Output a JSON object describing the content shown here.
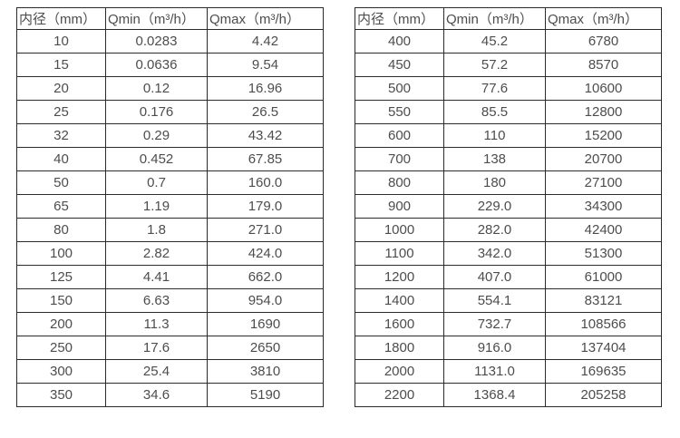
{
  "colors": {
    "background": "#ffffff",
    "table_border": "#2b2b2b",
    "table_text": "#4d4d4d"
  },
  "tables": [
    {
      "name": "small-diameters",
      "headers": [
        "内径（mm）",
        "Qmin（m³/h）",
        "Qmax（m³/h）"
      ],
      "rows": [
        [
          "10",
          "0.0283",
          "4.42"
        ],
        [
          "15",
          "0.0636",
          "9.54"
        ],
        [
          "20",
          "0.12",
          "16.96"
        ],
        [
          "25",
          "0.176",
          "26.5"
        ],
        [
          "32",
          "0.29",
          "43.42"
        ],
        [
          "40",
          "0.452",
          "67.85"
        ],
        [
          "50",
          "0.7",
          "160.0"
        ],
        [
          "65",
          "1.19",
          "179.0"
        ],
        [
          "80",
          "1.8",
          "271.0"
        ],
        [
          "100",
          "2.82",
          "424.0"
        ],
        [
          "125",
          "4.41",
          "662.0"
        ],
        [
          "150",
          "6.63",
          "954.0"
        ],
        [
          "200",
          "11.3",
          "1690"
        ],
        [
          "250",
          "17.6",
          "2650"
        ],
        [
          "300",
          "25.4",
          "3810"
        ],
        [
          "350",
          "34.6",
          "5190"
        ]
      ]
    },
    {
      "name": "large-diameters",
      "headers": [
        "内径（mm）",
        "Qmin（m³/h）",
        "Qmax（m³/h）"
      ],
      "rows": [
        [
          "400",
          "45.2",
          "6780"
        ],
        [
          "450",
          "57.2",
          "8570"
        ],
        [
          "500",
          "77.6",
          "10600"
        ],
        [
          "550",
          "85.5",
          "12800"
        ],
        [
          "600",
          "110",
          "15200"
        ],
        [
          "700",
          "138",
          "20700"
        ],
        [
          "800",
          "180",
          "27100"
        ],
        [
          "900",
          "229.0",
          "34300"
        ],
        [
          "1000",
          "282.0",
          "42400"
        ],
        [
          "1100",
          "342.0",
          "51300"
        ],
        [
          "1200",
          "407.0",
          "61000"
        ],
        [
          "1400",
          "554.1",
          "83121"
        ],
        [
          "1600",
          "732.7",
          "108566"
        ],
        [
          "1800",
          "916.0",
          "137404"
        ],
        [
          "2000",
          "1131.0",
          "169635"
        ],
        [
          "2200",
          "1368.4",
          "205258"
        ]
      ]
    }
  ]
}
